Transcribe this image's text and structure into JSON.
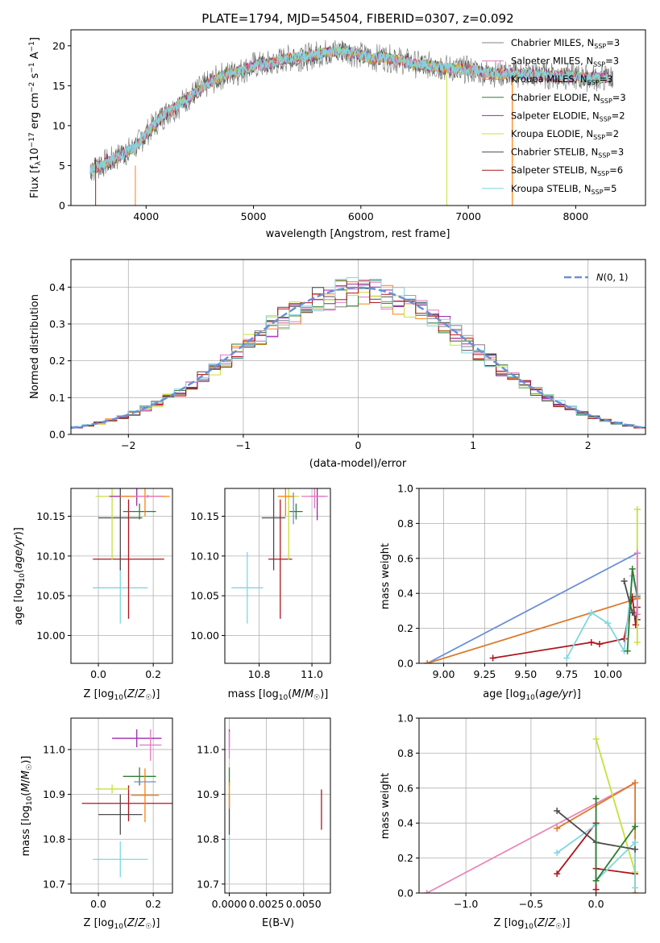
{
  "figure": {
    "title": "PLATE=1794, MJD=54504, FIBERID=0307, z=0.092"
  },
  "colors": {
    "chabrier_miles": "#808080",
    "salpeter_miles": "#e377c2",
    "kroupa_miles": "#ff7f0e",
    "chabrier_elodie": "#2e7d32",
    "salpeter_elodie": "#9c27b0",
    "kroupa_elodie": "#c7e03a",
    "chabrier_stelib": "#4d4d4d",
    "salpeter_stelib": "#b0141e",
    "kroupa_stelib": "#7fd7e0",
    "gaussian": "#6a8fd8",
    "line_blue": "#6a8fd8",
    "line_orange": "#dd7a2c",
    "line_pink": "#e888b8"
  },
  "chart_data": [
    {
      "id": "spectrum",
      "type": "line",
      "xlabel": "wavelength [Angstrom, rest frame]",
      "ylabel": "Flux [f_λ10^-17 erg cm^-2 s^-1 A^-1]",
      "xlim": [
        3300,
        8650
      ],
      "ylim": [
        0,
        22
      ],
      "xticks": [
        4000,
        5000,
        6000,
        7000,
        8000
      ],
      "yticks": [
        0,
        5,
        10,
        15,
        20
      ],
      "spectrum_shape": {
        "x": [
          3500,
          3600,
          3700,
          3800,
          3900,
          4000,
          4100,
          4200,
          4300,
          4400,
          4500,
          4600,
          4700,
          4800,
          4900,
          5000,
          5100,
          5200,
          5300,
          5400,
          5500,
          5600,
          5700,
          5800,
          5900,
          6000,
          6100,
          6200,
          6300,
          6400,
          6500,
          6600,
          6700,
          6800,
          6900,
          7000,
          7100,
          7200,
          7300,
          7400,
          7500,
          7600,
          7700,
          7800,
          7900,
          8000,
          8100,
          8200,
          8300
        ],
        "y": [
          4.5,
          5.2,
          5.8,
          6.6,
          7.3,
          9.0,
          10.5,
          11.7,
          12.5,
          13.6,
          14.6,
          15.4,
          16.2,
          16.6,
          16.9,
          17.6,
          17.6,
          17.9,
          18.4,
          18.5,
          18.6,
          19.0,
          19.2,
          19.4,
          19.2,
          18.8,
          18.4,
          18.6,
          18.3,
          18.1,
          17.7,
          17.6,
          17.4,
          17.2,
          17.1,
          17.0,
          16.8,
          16.6,
          16.5,
          16.5,
          16.4,
          16.4,
          16.3,
          16.2,
          16.2,
          16.1,
          16.0,
          16.0,
          16.0
        ]
      },
      "legend": [
        {
          "label": "Chabrier MILES, N",
          "sub": "SSP",
          "tail": "=3"
        },
        {
          "label": "Salpeter MILES, N",
          "sub": "SSP",
          "tail": "=3"
        },
        {
          "label": "Kroupa MILES, N",
          "sub": "SSP",
          "tail": "=3"
        },
        {
          "label": "Chabrier ELODIE, N",
          "sub": "SSP",
          "tail": "=3"
        },
        {
          "label": "Salpeter ELODIE, N",
          "sub": "SSP",
          "tail": "=2"
        },
        {
          "label": "Kroupa ELODIE, N",
          "sub": "SSP",
          "tail": "=2"
        },
        {
          "label": "Chabrier STELIB, N",
          "sub": "SSP",
          "tail": "=3"
        },
        {
          "label": "Salpeter STELIB, N",
          "sub": "SSP",
          "tail": "=6"
        },
        {
          "label": "Kroupa STELIB, N",
          "sub": "SSP",
          "tail": "=5"
        }
      ],
      "legend_placement": "top-right"
    },
    {
      "id": "residuals",
      "type": "line",
      "xlabel": "(data-model)/error",
      "ylabel": "Normed distribution",
      "xlim": [
        -2.5,
        2.5
      ],
      "ylim": [
        0,
        0.475
      ],
      "xticks": [
        -2,
        -1,
        0,
        1,
        2
      ],
      "yticks": [
        0.0,
        0.1,
        0.2,
        0.3,
        0.4
      ],
      "grid": true,
      "legend": [
        {
          "label": "N(0, 1)",
          "style": "dashed"
        }
      ],
      "legend_placement": "top-right",
      "bin_width": 0.1
    },
    {
      "id": "age_vs_Z",
      "type": "scatter",
      "xlabel": "Z [log10(Z/Z☉)]",
      "ylabel": "age [log10(age/yr)]",
      "xlim": [
        -0.1,
        0.27
      ],
      "ylim": [
        9.965,
        10.185
      ],
      "xticks": [
        0.0,
        0.2
      ],
      "yticks": [
        10.0,
        10.05,
        10.1,
        10.15
      ],
      "grid": true,
      "points": [
        {
          "x": 0.08,
          "y": 10.06,
          "xerr": 0.1,
          "yerr": 0.045,
          "c": "kroupa_stelib"
        },
        {
          "x": 0.11,
          "y": 10.096,
          "xerr": 0.13,
          "yerr": 0.075,
          "c": "salpeter_stelib"
        },
        {
          "x": 0.08,
          "y": 10.148,
          "xerr": 0.08,
          "yerr": 0.066,
          "c": "chabrier_stelib"
        },
        {
          "x": 0.05,
          "y": 10.175,
          "xerr": 0.06,
          "yerr": 0.08,
          "c": "kroupa_elodie"
        },
        {
          "x": 0.14,
          "y": 10.175,
          "xerr": 0.1,
          "yerr": 0.012,
          "c": "salpeter_elodie"
        },
        {
          "x": 0.15,
          "y": 10.156,
          "xerr": 0.06,
          "yerr": 0.01,
          "c": "chabrier_elodie"
        },
        {
          "x": 0.17,
          "y": 10.175,
          "xerr": 0.09,
          "yerr": 0.025,
          "c": "kroupa_miles"
        },
        {
          "x": 0.18,
          "y": 10.175,
          "xerr": 0.05,
          "yerr": 0.002,
          "c": "salpeter_miles"
        }
      ]
    },
    {
      "id": "age_vs_mass",
      "type": "scatter",
      "xlabel": "mass [log10(M/M☉)]",
      "ylabel": "",
      "xlim": [
        10.67,
        11.07
      ],
      "ylim": [
        9.965,
        10.185
      ],
      "xticks": [
        10.8,
        11.0
      ],
      "yticks": [
        10.0,
        10.05,
        10.1,
        10.15
      ],
      "grid": true,
      "points": [
        {
          "x": 10.755,
          "y": 10.06,
          "xerr": 0.06,
          "yerr": 0.045,
          "c": "kroupa_stelib"
        },
        {
          "x": 10.88,
          "y": 10.096,
          "xerr": 0.045,
          "yerr": 0.075,
          "c": "salpeter_stelib"
        },
        {
          "x": 10.855,
          "y": 10.148,
          "xerr": 0.045,
          "yerr": 0.066,
          "c": "chabrier_stelib"
        },
        {
          "x": 10.912,
          "y": 10.175,
          "xerr": 0.04,
          "yerr": 0.08,
          "c": "kroupa_elodie"
        },
        {
          "x": 11.02,
          "y": 10.175,
          "xerr": 0.03,
          "yerr": 0.03,
          "c": "salpeter_elodie"
        },
        {
          "x": 10.94,
          "y": 10.156,
          "xerr": 0.025,
          "yerr": 0.01,
          "c": "chabrier_elodie"
        },
        {
          "x": 10.9,
          "y": 10.175,
          "xerr": 0.03,
          "yerr": 0.025,
          "c": "kroupa_miles"
        },
        {
          "x": 11.01,
          "y": 10.175,
          "xerr": 0.05,
          "yerr": 0.015,
          "c": "salpeter_miles"
        },
        {
          "x": 10.93,
          "y": 10.16,
          "xerr": 0.0,
          "yerr": 0.02,
          "c": "line_blue"
        }
      ]
    },
    {
      "id": "weight_vs_age",
      "type": "line",
      "xlabel": "age [log10(age/yr)]",
      "ylabel": "mass weight",
      "xlim": [
        8.85,
        10.23
      ],
      "ylim": [
        0,
        1
      ],
      "xticks": [
        9.0,
        9.25,
        9.5,
        9.75,
        10.0
      ],
      "xticklabels": [
        "9.00",
        "9.25",
        "9.50",
        "9.75",
        "10.00"
      ],
      "yticks": [
        0.0,
        0.2,
        0.4,
        0.6,
        0.8,
        1.0
      ],
      "grid": true,
      "series": [
        {
          "c": "line_blue",
          "x": [
            8.9,
            10.18
          ],
          "y": [
            0.0,
            0.63
          ]
        },
        {
          "c": "line_orange",
          "x": [
            8.9,
            10.18
          ],
          "y": [
            0.0,
            0.37
          ]
        },
        {
          "c": "salpeter_stelib",
          "x": [
            9.3,
            9.9,
            9.95,
            10.1,
            10.15,
            10.17,
            10.18
          ],
          "y": [
            0.03,
            0.12,
            0.11,
            0.14,
            0.38,
            0.22,
            0.32
          ]
        },
        {
          "c": "kroupa_stelib",
          "x": [
            9.75,
            9.9,
            10.0,
            10.1,
            10.15,
            10.18
          ],
          "y": [
            0.03,
            0.29,
            0.23,
            0.07,
            0.5,
            0.39
          ]
        },
        {
          "c": "chabrier_stelib",
          "x": [
            10.1,
            10.15,
            10.18
          ],
          "y": [
            0.47,
            0.29,
            0.25
          ]
        },
        {
          "c": "chabrier_elodie",
          "x": [
            10.12,
            10.15,
            10.18
          ],
          "y": [
            0.07,
            0.54,
            0.38
          ]
        },
        {
          "c": "kroupa_elodie",
          "x": [
            10.18,
            10.18
          ],
          "y": [
            0.88,
            0.12
          ]
        },
        {
          "c": "salpeter_miles",
          "x": [
            10.18,
            10.18
          ],
          "y": [
            0.63,
            0.28
          ]
        }
      ]
    },
    {
      "id": "mass_vs_Z",
      "type": "scatter",
      "xlabel": "Z [log10(Z/Z☉)]",
      "ylabel": "mass [log10(M/M☉)]",
      "xlim": [
        -0.1,
        0.27
      ],
      "ylim": [
        10.68,
        11.07
      ],
      "xticks": [
        0.0,
        0.2
      ],
      "yticks": [
        10.7,
        10.8,
        10.9,
        11.0
      ],
      "grid": true,
      "points": [
        {
          "x": 0.08,
          "y": 10.755,
          "xerr": 0.1,
          "yerr": 0.04,
          "c": "kroupa_stelib"
        },
        {
          "x": 0.11,
          "y": 10.88,
          "xerr": 0.17,
          "yerr": 0.04,
          "c": "salpeter_stelib"
        },
        {
          "x": 0.08,
          "y": 10.855,
          "xerr": 0.08,
          "yerr": 0.045,
          "c": "chabrier_stelib"
        },
        {
          "x": 0.05,
          "y": 10.912,
          "xerr": 0.06,
          "yerr": 0.01,
          "c": "kroupa_elodie"
        },
        {
          "x": 0.14,
          "y": 11.025,
          "xerr": 0.09,
          "yerr": 0.02,
          "c": "salpeter_elodie"
        },
        {
          "x": 0.15,
          "y": 10.94,
          "xerr": 0.06,
          "yerr": 0.02,
          "c": "chabrier_elodie"
        },
        {
          "x": 0.17,
          "y": 10.898,
          "xerr": 0.05,
          "yerr": 0.06,
          "c": "kroupa_miles"
        },
        {
          "x": 0.19,
          "y": 11.01,
          "xerr": 0.04,
          "yerr": 0.035,
          "c": "salpeter_miles"
        },
        {
          "x": 0.17,
          "y": 10.928,
          "xerr": 0.04,
          "yerr": 0.0,
          "c": "line_blue"
        }
      ]
    },
    {
      "id": "mass_vs_ebv",
      "type": "scatter",
      "xlabel": "E(B-V)",
      "ylabel": "",
      "xlim": [
        -0.0003,
        0.0068
      ],
      "ylim": [
        10.68,
        11.07
      ],
      "xticks": [
        0.0,
        0.0025,
        0.005
      ],
      "xticklabels": [
        "0.0000",
        "0.0025",
        "0.0050"
      ],
      "yticks": [
        10.7,
        10.8,
        10.9,
        11.0
      ],
      "grid": true,
      "points": [
        {
          "x": 0.0,
          "y": 10.755,
          "yerr": 0.05,
          "c": "kroupa_stelib"
        },
        {
          "x": 0.0,
          "y": 10.855,
          "yerr": 0.045,
          "c": "chabrier_stelib"
        },
        {
          "x": 0.0,
          "y": 10.912,
          "yerr": 0.02,
          "c": "kroupa_elodie"
        },
        {
          "x": 0.0,
          "y": 11.025,
          "yerr": 0.02,
          "c": "salpeter_elodie"
        },
        {
          "x": 0.0,
          "y": 10.94,
          "yerr": 0.02,
          "c": "chabrier_elodie"
        },
        {
          "x": 0.0,
          "y": 10.898,
          "yerr": 0.03,
          "c": "kroupa_miles"
        },
        {
          "x": 0.0,
          "y": 11.01,
          "yerr": 0.03,
          "c": "salpeter_miles"
        },
        {
          "x": 0.0062,
          "y": 10.866,
          "yerr": 0.045,
          "c": "salpeter_stelib"
        }
      ]
    },
    {
      "id": "weight_vs_Z",
      "type": "line",
      "xlabel": "Z [log10(Z/Z☉)]",
      "ylabel": "mass weight",
      "xlim": [
        -1.36,
        0.38
      ],
      "ylim": [
        0,
        1
      ],
      "xticks": [
        -1.0,
        -0.5,
        0.0
      ],
      "xticklabels": [
        "−1.0",
        "−0.5",
        "0.0"
      ],
      "yticks": [
        0.0,
        0.2,
        0.4,
        0.6,
        0.8,
        1.0
      ],
      "grid": true,
      "series": [
        {
          "c": "line_pink",
          "x": [
            -1.3,
            0.3
          ],
          "y": [
            0.0,
            0.63
          ]
        },
        {
          "c": "line_orange",
          "x": [
            -0.3,
            0.3,
            0.3
          ],
          "y": [
            0.37,
            0.63,
            0.0
          ]
        },
        {
          "c": "kroupa_elodie",
          "x": [
            0.0,
            0.3
          ],
          "y": [
            0.88,
            0.12
          ]
        },
        {
          "c": "salpeter_stelib",
          "x": [
            -0.3,
            0.0,
            0.0,
            0.0,
            0.3
          ],
          "y": [
            0.11,
            0.4,
            0.02,
            0.14,
            0.11
          ]
        },
        {
          "c": "kroupa_stelib",
          "x": [
            -0.3,
            0.0,
            0.0,
            0.3,
            0.3
          ],
          "y": [
            0.23,
            0.39,
            0.07,
            0.29,
            0.03
          ]
        },
        {
          "c": "chabrier_stelib",
          "x": [
            -0.3,
            0.0,
            0.3
          ],
          "y": [
            0.47,
            0.29,
            0.25
          ]
        },
        {
          "c": "chabrier_elodie",
          "x": [
            0.0,
            0.0,
            0.3
          ],
          "y": [
            0.54,
            0.07,
            0.38
          ]
        }
      ]
    }
  ]
}
